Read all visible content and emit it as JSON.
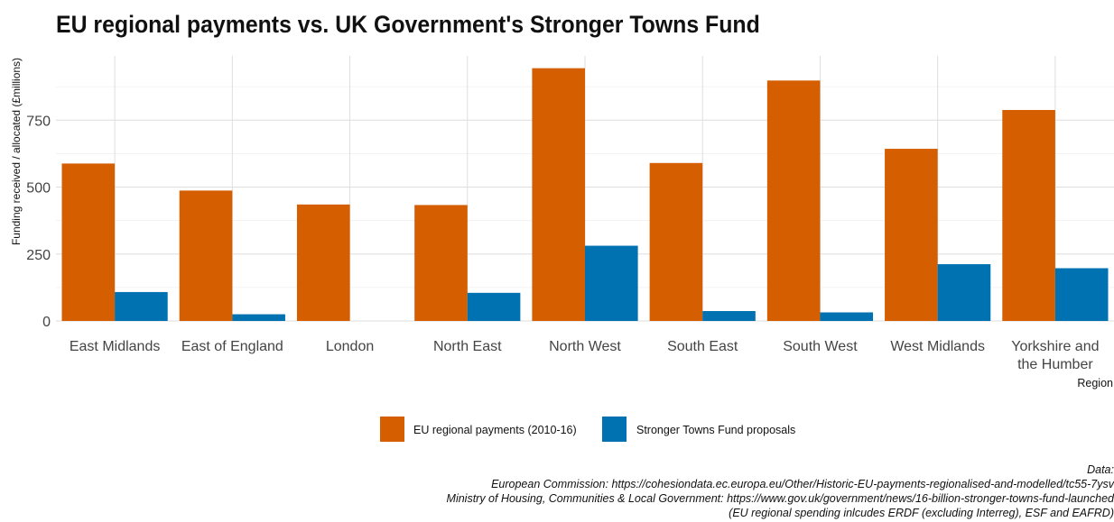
{
  "chart_data": {
    "type": "bar",
    "title": "EU regional payments vs. UK Government's Stronger Towns Fund",
    "xlabel": "Region",
    "ylabel": "Funding received / allocated (£millions)",
    "categories": [
      "East Midlands",
      "East of England",
      "London",
      "North East",
      "North West",
      "South East",
      "South West",
      "West Midlands",
      "Yorkshire and the Humber"
    ],
    "category_lines": [
      [
        "East Midlands"
      ],
      [
        "East of England"
      ],
      [
        "London"
      ],
      [
        "North East"
      ],
      [
        "North West"
      ],
      [
        "South East"
      ],
      [
        "South West"
      ],
      [
        "West Midlands"
      ],
      [
        "Yorkshire and",
        "the Humber"
      ]
    ],
    "series": [
      {
        "name": "EU regional payments (2010-16)",
        "color": "#D55E00",
        "values": [
          588,
          487,
          435,
          433,
          944,
          590,
          898,
          643,
          788
        ]
      },
      {
        "name": "Stronger Towns Fund proposals",
        "color": "#0072B2",
        "values": [
          108,
          25,
          0,
          105,
          281,
          37,
          32,
          212,
          197
        ]
      }
    ],
    "yticks": [
      0,
      250,
      500,
      750
    ],
    "ylim": [
      0,
      990
    ],
    "grid": true,
    "legend_position": "bottom"
  },
  "caption": [
    "Data:",
    "European Commission: https://cohesiondata.ec.europa.eu/Other/Historic-EU-payments-regionalised-and-modelled/tc55-7ysv",
    "Ministry of Housing, Communities & Local Government: https://www.gov.uk/government/news/16-billion-stronger-towns-fund-launched",
    "(EU regional spending inlcudes ERDF (excluding Interreg), ESF and EAFRD)"
  ]
}
